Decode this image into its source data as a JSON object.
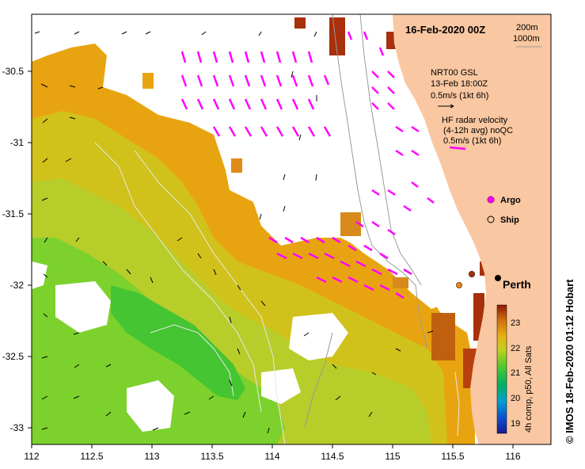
{
  "header": {
    "date": "16-Feb-2020 00Z"
  },
  "depth_legend": {
    "line1": "200m",
    "line2": "1000m"
  },
  "model_legend": {
    "name": "NRT00 GSL",
    "time": "13-Feb 18:00Z",
    "scale": "0.5m/s (1kt 6h)"
  },
  "radar_legend": {
    "title": "HF radar velocity",
    "subtitle": "(4-12h avg) noQC",
    "scale": "0.5m/s (1kt 6h)"
  },
  "markers": {
    "argo": "Argo",
    "ship": "Ship"
  },
  "city": "Perth",
  "colorbar": {
    "title": "4h comp, p50, All Sats",
    "ticks": [
      "23",
      "22",
      "21",
      "20",
      "19"
    ],
    "range": [
      18.6,
      23.7
    ]
  },
  "credit": "© IMOS 18-Feb-2020 01:12 Hobart",
  "axes": {
    "x_ticks": [
      "112",
      "112.5",
      "113",
      "113.5",
      "114",
      "114.5",
      "115",
      "115.5",
      "116"
    ],
    "y_ticks": [
      "-30.5",
      "-31",
      "-31.5",
      "-32",
      "-32.5",
      "-33"
    ]
  },
  "colors": {
    "land": "#f9c7a1",
    "radar_vector": "#ff00ff",
    "frame": "#000000"
  }
}
